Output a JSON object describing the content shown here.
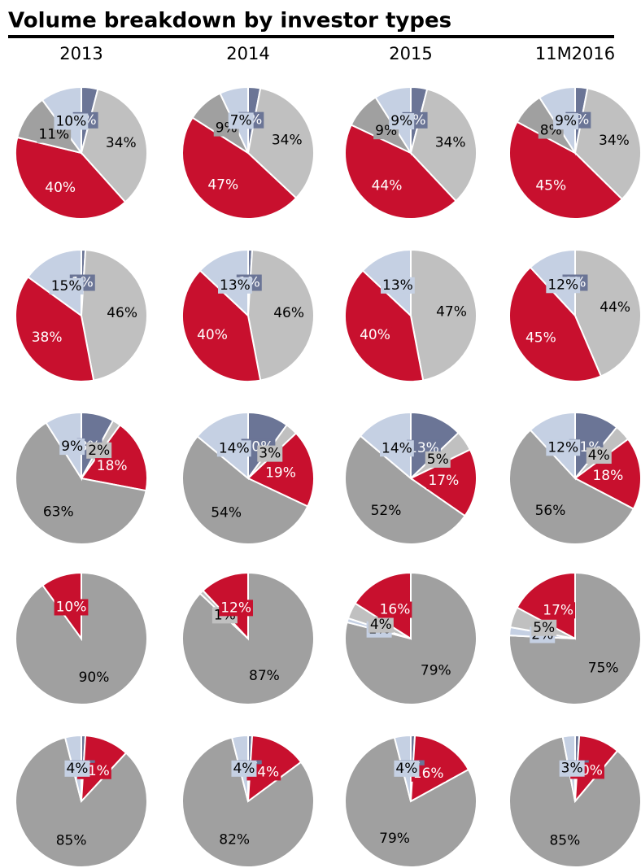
{
  "title": "Volume breakdown by investor types",
  "chart_data": [
    {
      "type": "pie",
      "title": "2013",
      "values": [
        4,
        34,
        40,
        11,
        10
      ],
      "value_labels": [
        "4%",
        "34%",
        "40%",
        "11%",
        "10%"
      ],
      "colors": [
        "#6b7596",
        "#c0c0c0",
        "#c8102e",
        "#a0a0a0",
        "#c5d0e3"
      ]
    },
    {
      "type": "pie",
      "title": "2014",
      "values": [
        3,
        34,
        47,
        9,
        7
      ],
      "value_labels": [
        "3%",
        "34%",
        "47%",
        "9%",
        "7%"
      ],
      "colors": [
        "#6b7596",
        "#c0c0c0",
        "#c8102e",
        "#a0a0a0",
        "#c5d0e3"
      ]
    },
    {
      "type": "pie",
      "title": "2015",
      "values": [
        4,
        34,
        44,
        9,
        9
      ],
      "value_labels": [
        "4%",
        "34%",
        "44%",
        "9%",
        "9%"
      ],
      "colors": [
        "#6b7596",
        "#c0c0c0",
        "#c8102e",
        "#a0a0a0",
        "#c5d0e3"
      ]
    },
    {
      "type": "pie",
      "title": "11M2016",
      "values": [
        3,
        34,
        45,
        8,
        9
      ],
      "value_labels": [
        "3%",
        "34%",
        "45%",
        "8%",
        "9%"
      ],
      "colors": [
        "#6b7596",
        "#c0c0c0",
        "#c8102e",
        "#a0a0a0",
        "#c5d0e3"
      ]
    },
    {
      "type": "pie",
      "values": [
        1,
        46,
        38,
        15
      ],
      "value_labels": [
        "1%",
        "46%",
        "38%",
        "15%"
      ],
      "colors": [
        "#6b7596",
        "#c0c0c0",
        "#c8102e",
        "#c5d0e3"
      ]
    },
    {
      "type": "pie",
      "values": [
        1,
        46,
        40,
        13
      ],
      "value_labels": [
        "1%",
        "46%",
        "40%",
        "13%"
      ],
      "colors": [
        "#6b7596",
        "#c0c0c0",
        "#c8102e",
        "#c5d0e3"
      ]
    },
    {
      "type": "pie",
      "values": [
        47,
        40,
        13
      ],
      "value_labels": [
        "47%",
        "40%",
        "13%"
      ],
      "colors": [
        "#c0c0c0",
        "#c8102e",
        "#c5d0e3"
      ]
    },
    {
      "type": "pie",
      "values": [
        0,
        44,
        45,
        12
      ],
      "value_labels": [
        "0%",
        "44%",
        "45%",
        "12%"
      ],
      "colors": [
        "#6b7596",
        "#c0c0c0",
        "#c8102e",
        "#c5d0e3"
      ]
    },
    {
      "type": "pie",
      "values": [
        8,
        2,
        18,
        63,
        9
      ],
      "value_labels": [
        "8%",
        "2%",
        "18%",
        "63%",
        "9%"
      ],
      "colors": [
        "#6b7596",
        "#c0c0c0",
        "#c8102e",
        "#a0a0a0",
        "#c5d0e3"
      ]
    },
    {
      "type": "pie",
      "values": [
        10,
        3,
        19,
        54,
        14
      ],
      "value_labels": [
        "10%",
        "3%",
        "19%",
        "54%",
        "14%"
      ],
      "colors": [
        "#6b7596",
        "#c0c0c0",
        "#c8102e",
        "#a0a0a0",
        "#c5d0e3"
      ]
    },
    {
      "type": "pie",
      "values": [
        13,
        5,
        17,
        52,
        14
      ],
      "value_labels": [
        "13%",
        "5%",
        "17%",
        "52%",
        "14%"
      ],
      "colors": [
        "#6b7596",
        "#c0c0c0",
        "#c8102e",
        "#a0a0a0",
        "#c5d0e3"
      ]
    },
    {
      "type": "pie",
      "values": [
        11,
        4,
        18,
        56,
        12
      ],
      "value_labels": [
        "11%",
        "4%",
        "18%",
        "56%",
        "12%"
      ],
      "colors": [
        "#6b7596",
        "#c0c0c0",
        "#c8102e",
        "#a0a0a0",
        "#c5d0e3"
      ]
    },
    {
      "type": "pie",
      "values": [
        90,
        10
      ],
      "value_labels": [
        "90%",
        "10%"
      ],
      "colors": [
        "#a0a0a0",
        "#c8102e"
      ]
    },
    {
      "type": "pie",
      "values": [
        87,
        1,
        12
      ],
      "value_labels": [
        "87%",
        "1%",
        "12%"
      ],
      "colors": [
        "#a0a0a0",
        "#c0c0c0",
        "#c8102e"
      ]
    },
    {
      "type": "pie",
      "values": [
        79,
        1,
        4,
        16
      ],
      "value_labels": [
        "79%",
        "1%",
        "4%",
        "16%"
      ],
      "colors": [
        "#a0a0a0",
        "#c5d0e3",
        "#c0c0c0",
        "#c8102e"
      ]
    },
    {
      "type": "pie",
      "values": [
        75,
        2,
        5,
        17
      ],
      "value_labels": [
        "75%",
        "2%",
        "5%",
        "17%"
      ],
      "colors": [
        "#a0a0a0",
        "#c5d0e3",
        "#c0c0c0",
        "#c8102e"
      ]
    },
    {
      "type": "pie",
      "values": [
        1,
        11,
        85,
        4
      ],
      "value_labels": [
        "1%",
        "11%",
        "85%",
        "4%"
      ],
      "colors": [
        "#6b7596",
        "#c8102e",
        "#a0a0a0",
        "#c5d0e3"
      ]
    },
    {
      "type": "pie",
      "values": [
        1,
        14,
        82,
        4
      ],
      "value_labels": [
        "1%",
        "14%",
        "82%",
        "4%"
      ],
      "colors": [
        "#6b7596",
        "#c8102e",
        "#a0a0a0",
        "#c5d0e3"
      ]
    },
    {
      "type": "pie",
      "values": [
        1,
        16,
        79,
        4
      ],
      "value_labels": [
        "1%",
        "16%",
        "79%",
        "4%"
      ],
      "colors": [
        "#6b7596",
        "#c8102e",
        "#a0a0a0",
        "#c5d0e3"
      ]
    },
    {
      "type": "pie",
      "values": [
        1,
        10,
        85,
        3
      ],
      "value_labels": [
        "1%",
        "10%",
        "85%",
        "3%"
      ],
      "colors": [
        "#6b7596",
        "#c8102e",
        "#a0a0a0",
        "#c5d0e3"
      ]
    }
  ]
}
